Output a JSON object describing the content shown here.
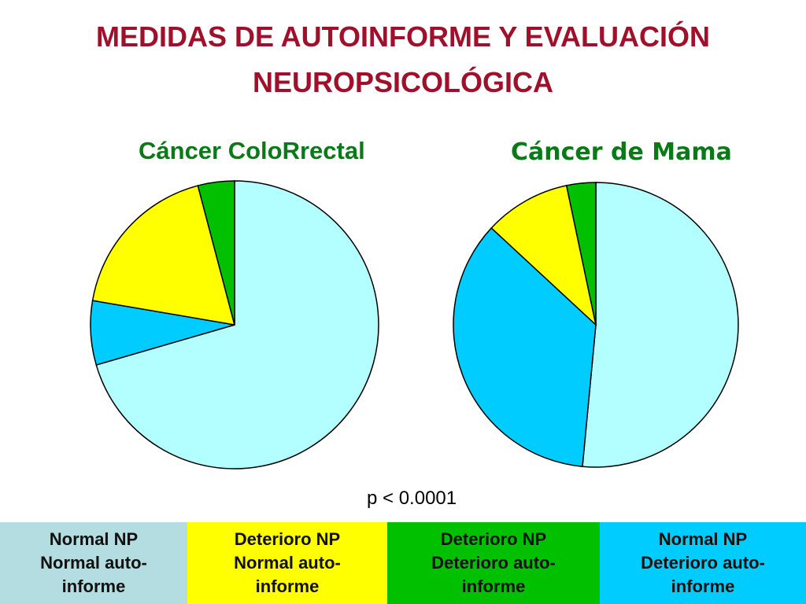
{
  "title_lines": [
    "MEDIDAS DE AUTOINFORME  Y EVALUACIÓN",
    "NEUROPSICOLÓGICA"
  ],
  "p_value": "p < 0.0001",
  "colors": {
    "title": "#a0102a",
    "pie_title": "#0a7a18",
    "normal_np_normal_auto": "#b3ffff",
    "deterioro_np_normal_auto": "#ffff00",
    "deterioro_np_deterioro_auto": "#00c000",
    "normal_np_deterioro_auto": "#00ccff",
    "legend_bg_normal_normal": "#b3dde0"
  },
  "legend": [
    {
      "lines": [
        "Normal NP",
        "Normal auto-",
        "informe"
      ],
      "color": "#b3dde0"
    },
    {
      "lines": [
        "Deterioro NP",
        "Normal auto-",
        "informe"
      ],
      "color": "#ffff00"
    },
    {
      "lines": [
        "Deterioro NP",
        "Deterioro auto-",
        "informe"
      ],
      "color": "#00c000"
    },
    {
      "lines": [
        "Normal NP",
        "Deterioro auto-",
        "informe"
      ],
      "color": "#00ccff"
    }
  ],
  "chart_data": [
    {
      "type": "pie",
      "title": "Cáncer ColoRrectal",
      "categories": [
        "Normal NP Normal auto-informe",
        "Normal NP Deterioro auto-informe",
        "Deterioro NP Normal auto-informe",
        "Deterioro NP Deterioro auto-informe"
      ],
      "values": [
        70.5,
        7.2,
        18.2,
        4.1
      ],
      "colors": [
        "#b3ffff",
        "#00ccff",
        "#ffff00",
        "#00c000"
      ]
    },
    {
      "type": "pie",
      "title": "Cáncer de Mama",
      "categories": [
        "Normal NP Normal auto-informe",
        "Normal NP Deterioro auto-informe",
        "Deterioro NP Normal auto-informe",
        "Deterioro NP Deterioro auto-informe"
      ],
      "values": [
        51.5,
        35.4,
        9.8,
        3.3
      ],
      "colors": [
        "#b3ffff",
        "#00ccff",
        "#ffff00",
        "#00c000"
      ]
    }
  ]
}
